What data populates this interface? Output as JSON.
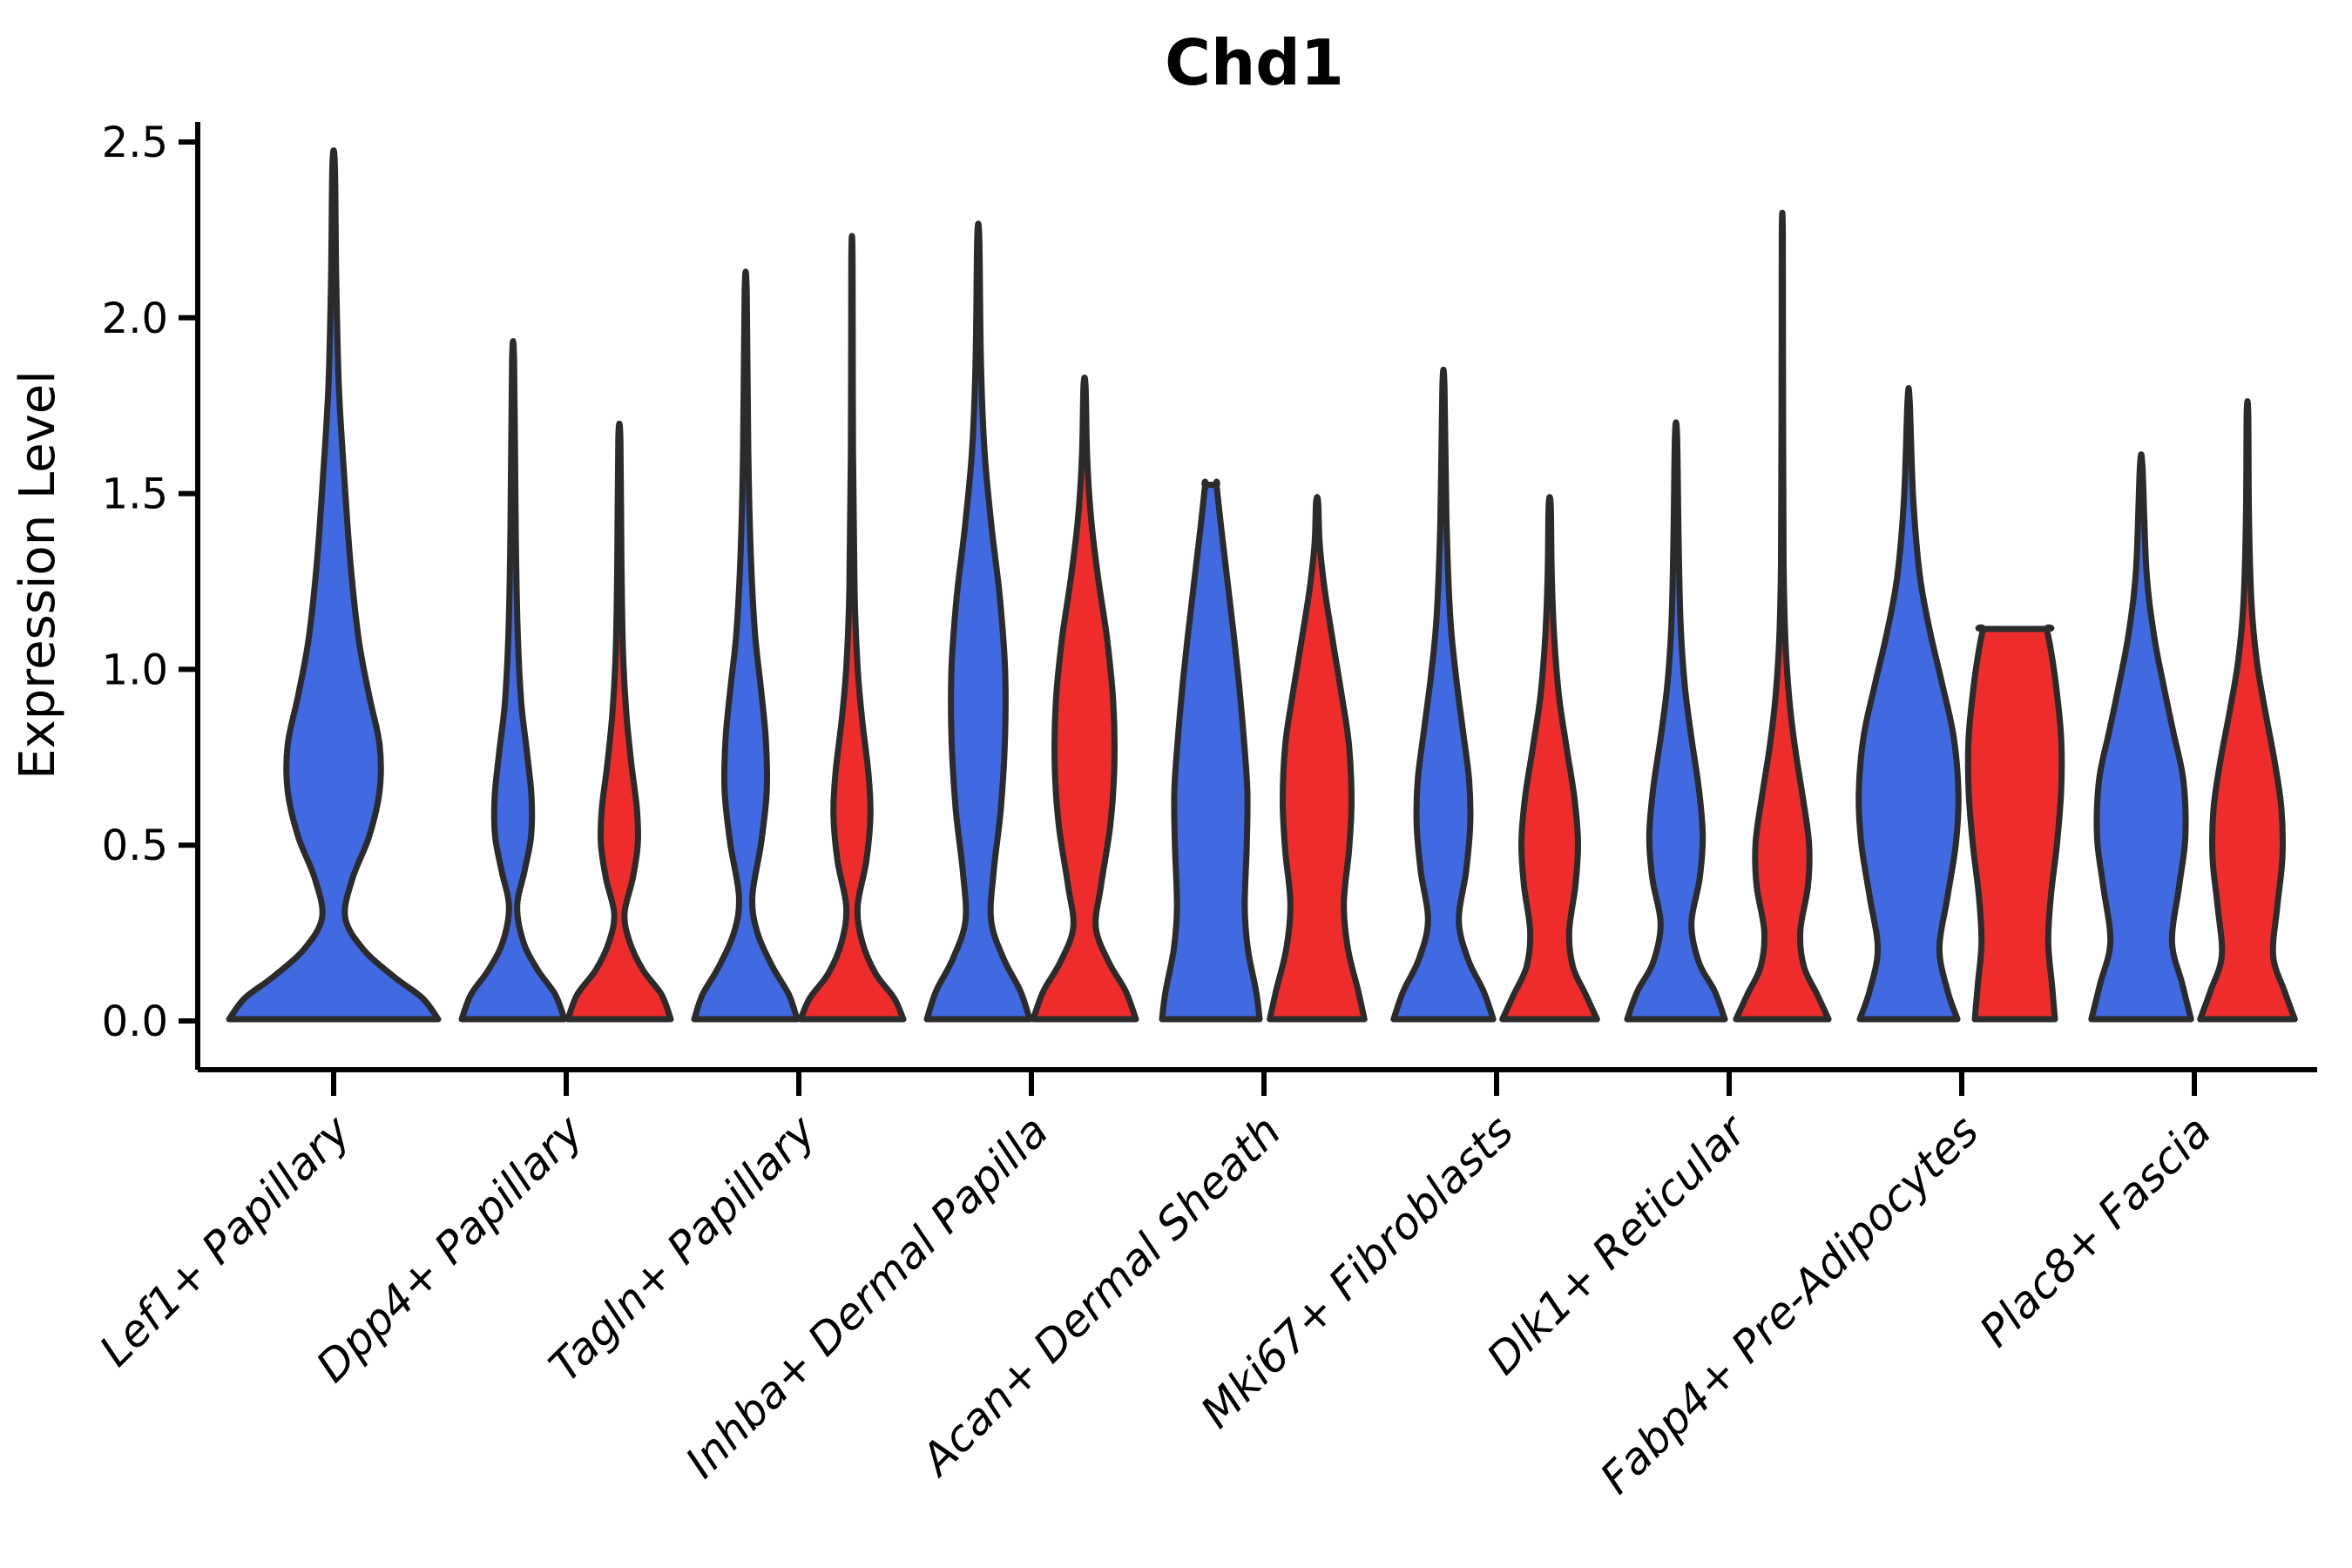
{
  "title": "Chd1",
  "axes": {
    "ylabel": "Expression Level",
    "ytick_labels": [
      "0.0",
      "0.5",
      "1.0",
      "1.5",
      "2.0",
      "2.5"
    ]
  },
  "colors": {
    "violin_blue": "#4169E1",
    "violin_red": "#EE2C2C",
    "outline": "#2b2b2b",
    "axis": "#000000",
    "background": "#ffffff"
  },
  "chart_data": {
    "type": "violin",
    "title": "Chd1",
    "xlabel": "",
    "ylabel": "Expression Level",
    "ylim": [
      0,
      2.5
    ],
    "yticks": [
      0.0,
      0.5,
      1.0,
      1.5,
      2.0,
      2.5
    ],
    "grid": false,
    "legend_position": "none",
    "split_violins": true,
    "categories": [
      "Lef1+ Papillary",
      "Dpp4+ Papillary",
      "Tagln+ Papillary",
      "Inhba+ Dermal Papilla",
      "Acan+ Dermal Sheath",
      "Mki67+ Fibroblasts",
      "Dlk1+ Reticular",
      "Fabp4+ Pre-Adipocytes",
      "Plac8+ Fascia"
    ],
    "violins": [
      {
        "category": "Lef1+ Papillary",
        "cat_index": 0,
        "side": "single",
        "color": "blue",
        "max_expression": 2.43,
        "clipped_top": false,
        "profile": [
          [
            0,
            1.0
          ],
          [
            0.06,
            0.85
          ],
          [
            0.12,
            0.58
          ],
          [
            0.2,
            0.28
          ],
          [
            0.29,
            0.11
          ],
          [
            0.4,
            0.18
          ],
          [
            0.52,
            0.34
          ],
          [
            0.65,
            0.44
          ],
          [
            0.78,
            0.44
          ],
          [
            0.92,
            0.34
          ],
          [
            1.08,
            0.24
          ],
          [
            1.3,
            0.16
          ],
          [
            1.55,
            0.1
          ],
          [
            1.8,
            0.05
          ],
          [
            2.1,
            0.025
          ],
          [
            2.43,
            0.012
          ]
        ]
      },
      {
        "category": "Dpp4+ Papillary",
        "cat_index": 1,
        "side": "left",
        "color": "blue",
        "max_expression": 1.87,
        "clipped_top": false,
        "profile": [
          [
            0,
            1.0
          ],
          [
            0.07,
            0.82
          ],
          [
            0.14,
            0.48
          ],
          [
            0.22,
            0.2
          ],
          [
            0.32,
            0.08
          ],
          [
            0.42,
            0.22
          ],
          [
            0.52,
            0.35
          ],
          [
            0.63,
            0.36
          ],
          [
            0.76,
            0.27
          ],
          [
            0.9,
            0.16
          ],
          [
            1.1,
            0.09
          ],
          [
            1.4,
            0.05
          ],
          [
            1.87,
            0.02
          ]
        ]
      },
      {
        "category": "Dpp4+ Papillary",
        "cat_index": 1,
        "side": "right",
        "color": "red",
        "max_expression": 1.65,
        "clipped_top": false,
        "profile": [
          [
            0,
            1.0
          ],
          [
            0.07,
            0.82
          ],
          [
            0.14,
            0.46
          ],
          [
            0.22,
            0.2
          ],
          [
            0.3,
            0.1
          ],
          [
            0.4,
            0.26
          ],
          [
            0.5,
            0.36
          ],
          [
            0.6,
            0.34
          ],
          [
            0.73,
            0.23
          ],
          [
            0.88,
            0.13
          ],
          [
            1.05,
            0.07
          ],
          [
            1.3,
            0.04
          ],
          [
            1.65,
            0.02
          ]
        ]
      },
      {
        "category": "Tagln+ Papillary",
        "cat_index": 2,
        "side": "left",
        "color": "blue",
        "max_expression": 2.07,
        "clipped_top": false,
        "profile": [
          [
            0,
            1.0
          ],
          [
            0.07,
            0.84
          ],
          [
            0.15,
            0.52
          ],
          [
            0.25,
            0.22
          ],
          [
            0.35,
            0.13
          ],
          [
            0.5,
            0.3
          ],
          [
            0.65,
            0.41
          ],
          [
            0.8,
            0.39
          ],
          [
            0.95,
            0.29
          ],
          [
            1.1,
            0.18
          ],
          [
            1.32,
            0.1
          ],
          [
            1.62,
            0.05
          ],
          [
            2.07,
            0.02
          ]
        ]
      },
      {
        "category": "Tagln+ Papillary",
        "cat_index": 2,
        "side": "right",
        "color": "red",
        "max_expression": 2.16,
        "clipped_top": false,
        "profile": [
          [
            0,
            1.0
          ],
          [
            0.06,
            0.82
          ],
          [
            0.13,
            0.46
          ],
          [
            0.22,
            0.2
          ],
          [
            0.32,
            0.11
          ],
          [
            0.45,
            0.28
          ],
          [
            0.58,
            0.36
          ],
          [
            0.7,
            0.32
          ],
          [
            0.85,
            0.2
          ],
          [
            1.0,
            0.11
          ],
          [
            1.22,
            0.05
          ],
          [
            1.62,
            0.02
          ],
          [
            2.16,
            0.012
          ]
        ]
      },
      {
        "category": "Inhba+ Dermal Papilla",
        "cat_index": 3,
        "side": "left",
        "color": "blue",
        "max_expression": 2.22,
        "clipped_top": false,
        "profile": [
          [
            0,
            1.0
          ],
          [
            0.08,
            0.82
          ],
          [
            0.17,
            0.5
          ],
          [
            0.28,
            0.25
          ],
          [
            0.42,
            0.3
          ],
          [
            0.6,
            0.44
          ],
          [
            0.8,
            0.52
          ],
          [
            1.0,
            0.52
          ],
          [
            1.2,
            0.42
          ],
          [
            1.4,
            0.26
          ],
          [
            1.62,
            0.12
          ],
          [
            1.88,
            0.05
          ],
          [
            2.22,
            0.02
          ]
        ]
      },
      {
        "category": "Inhba+ Dermal Papilla",
        "cat_index": 3,
        "side": "right",
        "color": "red",
        "max_expression": 1.8,
        "clipped_top": false,
        "profile": [
          [
            0,
            1.0
          ],
          [
            0.08,
            0.8
          ],
          [
            0.16,
            0.48
          ],
          [
            0.26,
            0.22
          ],
          [
            0.38,
            0.32
          ],
          [
            0.55,
            0.5
          ],
          [
            0.72,
            0.58
          ],
          [
            0.9,
            0.56
          ],
          [
            1.08,
            0.44
          ],
          [
            1.25,
            0.27
          ],
          [
            1.42,
            0.13
          ],
          [
            1.6,
            0.05
          ],
          [
            1.8,
            0.02
          ]
        ]
      },
      {
        "category": "Acan+ Dermal Sheath",
        "cat_index": 4,
        "side": "left",
        "color": "blue",
        "max_expression": 1.52,
        "clipped_top": true,
        "profile": [
          [
            0,
            0.95
          ],
          [
            0.08,
            0.88
          ],
          [
            0.2,
            0.72
          ],
          [
            0.32,
            0.66
          ],
          [
            0.5,
            0.7
          ],
          [
            0.65,
            0.71
          ],
          [
            0.8,
            0.64
          ],
          [
            0.95,
            0.55
          ],
          [
            1.1,
            0.44
          ],
          [
            1.25,
            0.32
          ],
          [
            1.4,
            0.2
          ],
          [
            1.52,
            0.11
          ]
        ]
      },
      {
        "category": "Acan+ Dermal Sheath",
        "cat_index": 4,
        "side": "right",
        "color": "red",
        "max_expression": 1.47,
        "clipped_top": false,
        "profile": [
          [
            0,
            0.92
          ],
          [
            0.08,
            0.8
          ],
          [
            0.2,
            0.6
          ],
          [
            0.33,
            0.52
          ],
          [
            0.48,
            0.62
          ],
          [
            0.62,
            0.67
          ],
          [
            0.78,
            0.62
          ],
          [
            0.92,
            0.48
          ],
          [
            1.08,
            0.3
          ],
          [
            1.22,
            0.15
          ],
          [
            1.35,
            0.05
          ],
          [
            1.47,
            0.02
          ]
        ]
      },
      {
        "category": "Mki67+ Fibroblasts",
        "cat_index": 5,
        "side": "left",
        "color": "blue",
        "max_expression": 1.8,
        "clipped_top": false,
        "profile": [
          [
            0,
            0.97
          ],
          [
            0.08,
            0.78
          ],
          [
            0.17,
            0.48
          ],
          [
            0.28,
            0.3
          ],
          [
            0.42,
            0.44
          ],
          [
            0.55,
            0.52
          ],
          [
            0.68,
            0.5
          ],
          [
            0.82,
            0.38
          ],
          [
            0.98,
            0.24
          ],
          [
            1.15,
            0.13
          ],
          [
            1.42,
            0.06
          ],
          [
            1.8,
            0.02
          ]
        ]
      },
      {
        "category": "Mki67+ Fibroblasts",
        "cat_index": 5,
        "side": "right",
        "color": "red",
        "max_expression": 1.46,
        "clipped_top": false,
        "profile": [
          [
            0,
            0.92
          ],
          [
            0.07,
            0.7
          ],
          [
            0.15,
            0.45
          ],
          [
            0.25,
            0.38
          ],
          [
            0.38,
            0.5
          ],
          [
            0.5,
            0.55
          ],
          [
            0.63,
            0.48
          ],
          [
            0.78,
            0.32
          ],
          [
            0.92,
            0.18
          ],
          [
            1.08,
            0.09
          ],
          [
            1.26,
            0.04
          ],
          [
            1.46,
            0.02
          ]
        ]
      },
      {
        "category": "Dlk1+ Reticular",
        "cat_index": 6,
        "side": "left",
        "color": "blue",
        "max_expression": 1.66,
        "clipped_top": false,
        "profile": [
          [
            0,
            0.95
          ],
          [
            0.08,
            0.75
          ],
          [
            0.16,
            0.45
          ],
          [
            0.27,
            0.3
          ],
          [
            0.4,
            0.46
          ],
          [
            0.52,
            0.52
          ],
          [
            0.65,
            0.45
          ],
          [
            0.8,
            0.3
          ],
          [
            0.95,
            0.17
          ],
          [
            1.12,
            0.09
          ],
          [
            1.36,
            0.05
          ],
          [
            1.66,
            0.02
          ]
        ]
      },
      {
        "category": "Dlk1+ Reticular",
        "cat_index": 6,
        "side": "right",
        "color": "red",
        "max_expression": 2.23,
        "clipped_top": false,
        "profile": [
          [
            0,
            0.9
          ],
          [
            0.07,
            0.68
          ],
          [
            0.15,
            0.42
          ],
          [
            0.25,
            0.35
          ],
          [
            0.38,
            0.5
          ],
          [
            0.5,
            0.52
          ],
          [
            0.63,
            0.4
          ],
          [
            0.78,
            0.24
          ],
          [
            0.92,
            0.13
          ],
          [
            1.08,
            0.06
          ],
          [
            1.3,
            0.025
          ],
          [
            1.72,
            0.015
          ],
          [
            2.23,
            0.01
          ]
        ]
      },
      {
        "category": "Fabp4+ Pre-Adipocytes",
        "cat_index": 7,
        "side": "left",
        "color": "blue",
        "max_expression": 1.76,
        "clipped_top": false,
        "profile": [
          [
            0,
            0.95
          ],
          [
            0.08,
            0.76
          ],
          [
            0.2,
            0.6
          ],
          [
            0.35,
            0.76
          ],
          [
            0.5,
            0.92
          ],
          [
            0.64,
            0.97
          ],
          [
            0.8,
            0.88
          ],
          [
            0.95,
            0.66
          ],
          [
            1.1,
            0.42
          ],
          [
            1.26,
            0.22
          ],
          [
            1.48,
            0.09
          ],
          [
            1.76,
            0.02
          ]
        ]
      },
      {
        "category": "Fabp4+ Pre-Adipocytes",
        "cat_index": 7,
        "side": "right",
        "color": "red",
        "max_expression": 1.11,
        "clipped_top": true,
        "profile": [
          [
            0,
            0.78
          ],
          [
            0.1,
            0.72
          ],
          [
            0.22,
            0.65
          ],
          [
            0.35,
            0.7
          ],
          [
            0.5,
            0.82
          ],
          [
            0.65,
            0.9
          ],
          [
            0.8,
            0.9
          ],
          [
            0.95,
            0.8
          ],
          [
            1.05,
            0.7
          ],
          [
            1.11,
            0.62
          ]
        ]
      },
      {
        "category": "Plac8+ Fascia",
        "cat_index": 8,
        "side": "left",
        "color": "blue",
        "max_expression": 1.57,
        "clipped_top": false,
        "profile": [
          [
            0,
            0.97
          ],
          [
            0.1,
            0.8
          ],
          [
            0.22,
            0.6
          ],
          [
            0.38,
            0.74
          ],
          [
            0.52,
            0.86
          ],
          [
            0.68,
            0.82
          ],
          [
            0.82,
            0.62
          ],
          [
            0.96,
            0.42
          ],
          [
            1.1,
            0.24
          ],
          [
            1.28,
            0.1
          ],
          [
            1.57,
            0.025
          ]
        ]
      },
      {
        "category": "Plac8+ Fascia",
        "cat_index": 8,
        "side": "right",
        "color": "red",
        "max_expression": 1.72,
        "clipped_top": false,
        "profile": [
          [
            0,
            0.92
          ],
          [
            0.08,
            0.72
          ],
          [
            0.18,
            0.5
          ],
          [
            0.32,
            0.58
          ],
          [
            0.46,
            0.68
          ],
          [
            0.6,
            0.66
          ],
          [
            0.74,
            0.52
          ],
          [
            0.88,
            0.34
          ],
          [
            1.02,
            0.18
          ],
          [
            1.18,
            0.08
          ],
          [
            1.42,
            0.03
          ],
          [
            1.72,
            0.015
          ]
        ]
      }
    ]
  }
}
